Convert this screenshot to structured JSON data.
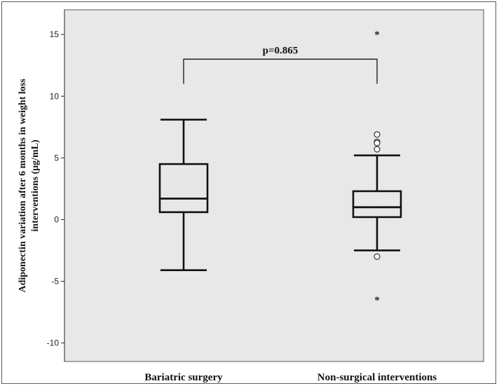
{
  "chart_data": {
    "type": "box",
    "ylabel_line1": "Adiponectin variation after 6 months in weight loss",
    "ylabel_line2": "interventions (μg/mL)",
    "xlabel": "",
    "ylim": [
      -11.5,
      17
    ],
    "yticks": [
      -10,
      -5,
      0,
      5,
      10,
      15
    ],
    "background": "#e8e8e8",
    "categories": [
      "Bariatric surgery",
      "Non-surgical interventions"
    ],
    "boxes": [
      {
        "category": "Bariatric surgery",
        "whisker_low": -4.1,
        "q1": 0.6,
        "median": 1.7,
        "q3": 4.5,
        "whisker_high": 8.1,
        "outliers": [],
        "extremes": []
      },
      {
        "category": "Non-surgical interventions",
        "whisker_low": -2.5,
        "q1": 0.2,
        "median": 1.0,
        "q3": 2.3,
        "whisker_high": 5.2,
        "outliers": [
          6.9,
          6.3,
          6.2,
          5.7,
          -3.0
        ],
        "extremes": [
          15.0,
          -6.5
        ]
      }
    ],
    "annotation": {
      "text": "p=0.865",
      "bracket_top": 13.0,
      "bracket_bottom": 11.0
    }
  }
}
